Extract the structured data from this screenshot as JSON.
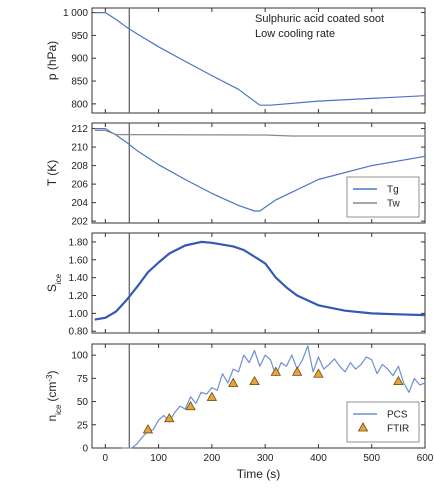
{
  "chart_data": [
    {
      "type": "line",
      "panel": "pressure",
      "ylabel": "p (hPa)",
      "ylim": [
        780,
        1010
      ],
      "yticks": [
        "1 000",
        "950",
        "900",
        "850",
        "800"
      ],
      "yticks_values": [
        1000,
        950,
        900,
        850,
        800
      ],
      "annotations": [
        "Sulphuric acid coated soot",
        "Low cooling rate"
      ],
      "series": [
        {
          "x": [
            -20,
            0,
            20,
            40,
            60,
            100,
            150,
            200,
            250,
            290,
            310,
            400,
            500,
            600
          ],
          "y": [
            1000,
            1000,
            985,
            968,
            953,
            925,
            893,
            862,
            832,
            797,
            797,
            806,
            812,
            818
          ],
          "color": "#4a74c9"
        }
      ]
    },
    {
      "type": "line",
      "panel": "temperature",
      "ylabel": "T (K)",
      "ylim": [
        201.8,
        212.6
      ],
      "yticks": [
        "212",
        "210",
        "208",
        "206",
        "204",
        "202"
      ],
      "yticks_values": [
        212,
        210,
        208,
        206,
        204,
        202
      ],
      "legend": "bottom-right",
      "series": [
        {
          "name": "Tg",
          "color": "#4a74c9",
          "x": [
            -20,
            0,
            20,
            40,
            60,
            100,
            150,
            200,
            250,
            280,
            290,
            320,
            400,
            500,
            600
          ],
          "y": [
            212,
            212,
            211.3,
            210.5,
            209.6,
            208.1,
            206.5,
            205,
            203.7,
            203.1,
            203.1,
            204.3,
            206.5,
            208,
            209
          ]
        },
        {
          "name": "Tw",
          "color": "#8a8a8a",
          "x": [
            -20,
            0,
            20,
            300,
            350,
            600
          ],
          "y": [
            211.8,
            211.8,
            211.35,
            211.3,
            211.2,
            211.2
          ]
        }
      ]
    },
    {
      "type": "line",
      "panel": "saturation",
      "ylabel": "S",
      "ylabel_sub": "ice",
      "ylim": [
        0.78,
        1.9
      ],
      "yticks": [
        "1.80",
        "1.60",
        "1.40",
        "1.20",
        "1.00",
        "0.80"
      ],
      "yticks_values": [
        1.8,
        1.6,
        1.4,
        1.2,
        1.0,
        0.8
      ],
      "series": [
        {
          "color": "#3359b5",
          "x": [
            -20,
            0,
            20,
            40,
            60,
            80,
            100,
            120,
            150,
            180,
            200,
            240,
            260,
            300,
            320,
            340,
            360,
            400,
            450,
            500,
            550,
            600
          ],
          "y": [
            0.93,
            0.95,
            1.02,
            1.15,
            1.3,
            1.46,
            1.57,
            1.67,
            1.76,
            1.8,
            1.79,
            1.75,
            1.71,
            1.56,
            1.4,
            1.29,
            1.2,
            1.09,
            1.03,
            1.0,
            0.99,
            0.98
          ]
        }
      ]
    },
    {
      "type": "line",
      "panel": "number concentration",
      "ylabel": "n",
      "ylabel_sub": "ice",
      "ylabel_unit": "(cm",
      "ylabel_unit_sup": "-3",
      "ylabel_unit_end": ")",
      "ylim": [
        0,
        112
      ],
      "yticks": [
        "100",
        "75",
        "50",
        "25",
        "0"
      ],
      "yticks_values": [
        100,
        75,
        50,
        25,
        0
      ],
      "xlabel": "Time (s)",
      "xlim": [
        -25,
        600
      ],
      "xticks": [
        "0",
        "100",
        "200",
        "300",
        "400",
        "500",
        "600"
      ],
      "xticks_values": [
        0,
        100,
        200,
        300,
        400,
        500,
        600
      ],
      "legend": "bottom-right",
      "series": [
        {
          "name": "PCS",
          "type": "line",
          "color": "#6f8fd0",
          "x": [
            30,
            50,
            60,
            70,
            80,
            90,
            100,
            110,
            120,
            130,
            140,
            150,
            160,
            170,
            180,
            190,
            200,
            210,
            220,
            230,
            240,
            250,
            260,
            270,
            280,
            290,
            300,
            310,
            320,
            330,
            340,
            350,
            360,
            370,
            380,
            390,
            400,
            410,
            420,
            430,
            440,
            450,
            460,
            470,
            480,
            490,
            500,
            510,
            520,
            530,
            540,
            550,
            560,
            570,
            580,
            590,
            600
          ],
          "y": [
            0,
            0,
            5,
            12,
            18,
            20,
            30,
            35,
            28,
            38,
            45,
            42,
            55,
            48,
            60,
            58,
            65,
            62,
            80,
            70,
            85,
            82,
            100,
            92,
            105,
            88,
            100,
            95,
            78,
            92,
            88,
            100,
            85,
            95,
            110,
            82,
            98,
            85,
            90,
            96,
            88,
            82,
            92,
            85,
            90,
            98,
            95,
            80,
            90,
            85,
            78,
            88,
            70,
            60,
            75,
            68,
            70
          ]
        },
        {
          "name": "FTIR",
          "type": "scatter",
          "color": "#e8a33a",
          "x": [
            80,
            120,
            160,
            200,
            240,
            280,
            320,
            360,
            400,
            550
          ],
          "y": [
            20,
            32,
            45,
            55,
            70,
            72,
            82,
            82,
            80,
            72
          ]
        }
      ],
      "vertical_marker_x": 45
    }
  ]
}
